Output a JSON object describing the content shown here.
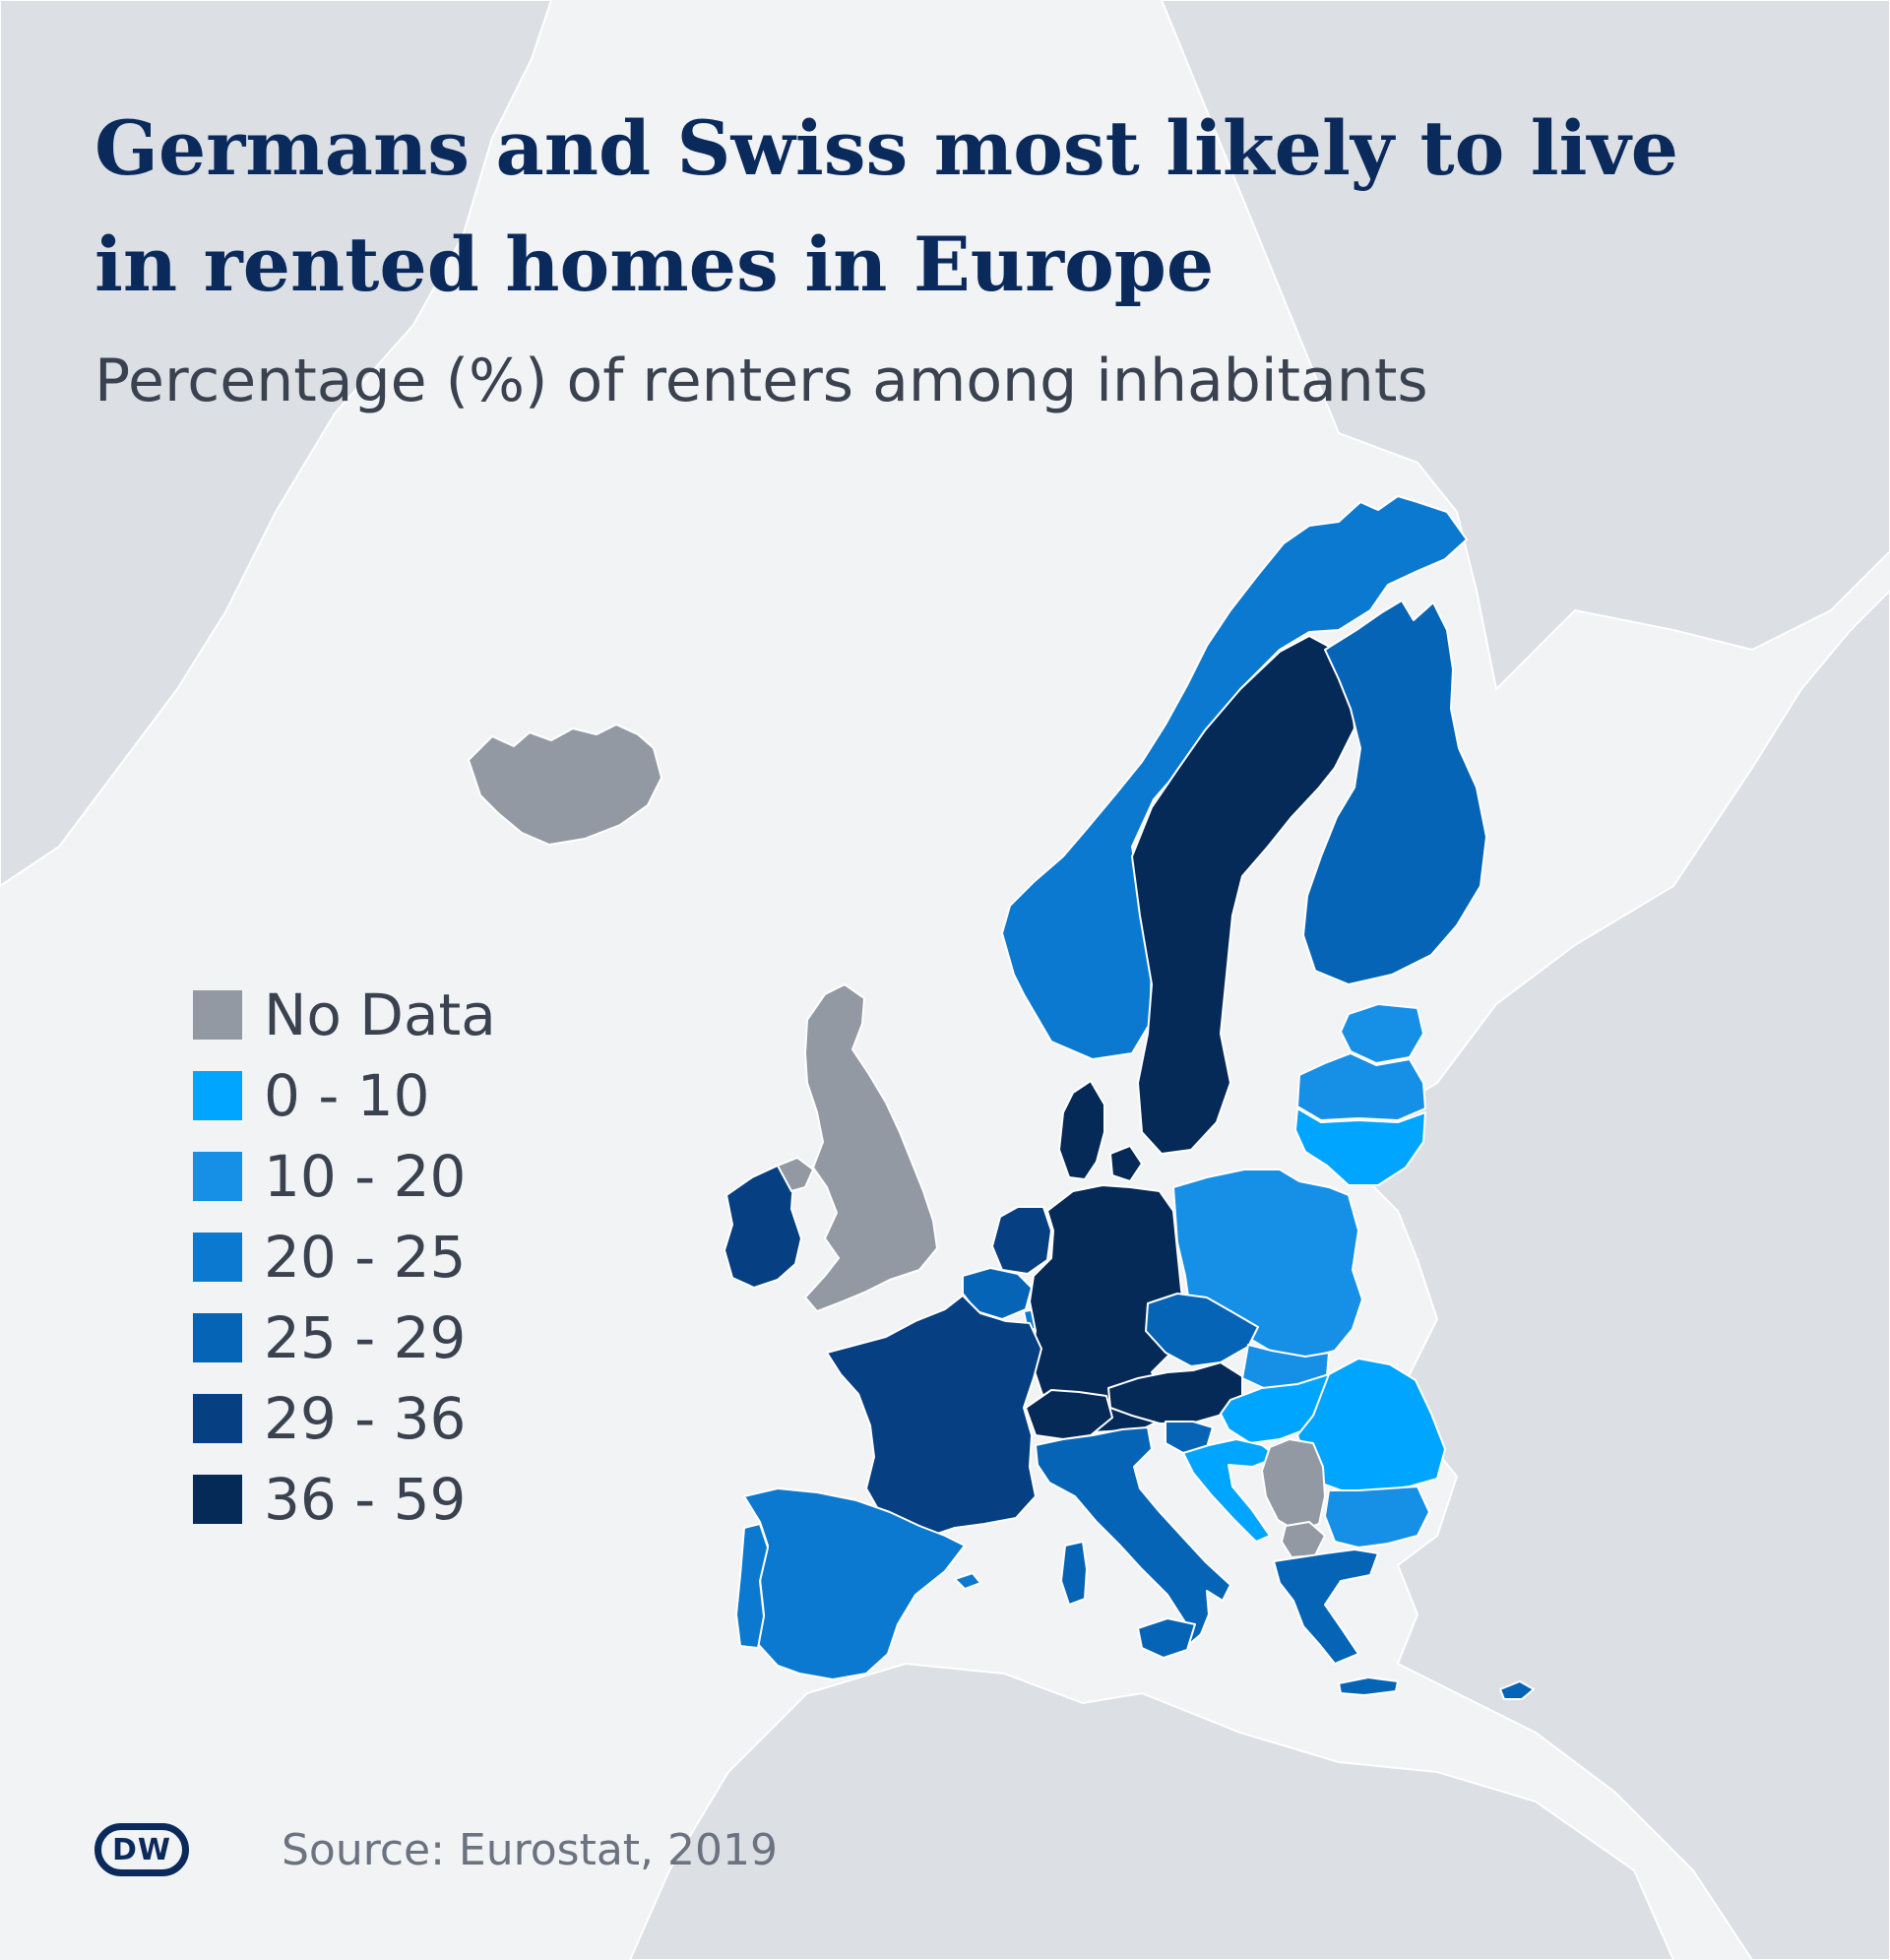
{
  "title": "Germans and Swiss most likely to live in rented homes in Europe",
  "subtitle": "Percentage (%) of renters among inhabitants",
  "legend": [
    {
      "label": "No Data",
      "color": "#9399a3"
    },
    {
      "label": "0 - 10",
      "color": "#00a5ff"
    },
    {
      "label": "10 - 20",
      "color": "#168fe6"
    },
    {
      "label": "20 - 25",
      "color": "#0b79d0"
    },
    {
      "label": "25 - 29",
      "color": "#0564b6"
    },
    {
      "label": "29 - 36",
      "color": "#063f82"
    },
    {
      "label": "36 - 59",
      "color": "#062a57"
    }
  ],
  "source": "Source: Eurostat, 2019",
  "logo": "DW",
  "map_colors": {
    "background": "#f2f3f5",
    "non_eu_land": "#dcdfe4",
    "borders": "#ffffff"
  },
  "countries": [
    {
      "name": "Germany",
      "class": "36 - 59"
    },
    {
      "name": "Switzerland",
      "class": "36 - 59"
    },
    {
      "name": "Sweden",
      "class": "36 - 59"
    },
    {
      "name": "Denmark",
      "class": "36 - 59"
    },
    {
      "name": "Austria",
      "class": "36 - 59"
    },
    {
      "name": "France",
      "class": "29 - 36"
    },
    {
      "name": "Netherlands",
      "class": "29 - 36"
    },
    {
      "name": "Ireland",
      "class": "29 - 36"
    },
    {
      "name": "Finland",
      "class": "25 - 29"
    },
    {
      "name": "Italy",
      "class": "25 - 29"
    },
    {
      "name": "Greece",
      "class": "25 - 29"
    },
    {
      "name": "Belgium",
      "class": "25 - 29"
    },
    {
      "name": "Czechia",
      "class": "25 - 29"
    },
    {
      "name": "Slovenia",
      "class": "25 - 29"
    },
    {
      "name": "Spain",
      "class": "20 - 25"
    },
    {
      "name": "Portugal",
      "class": "20 - 25"
    },
    {
      "name": "Norway",
      "class": "20 - 25"
    },
    {
      "name": "Luxembourg",
      "class": "20 - 25"
    },
    {
      "name": "Poland",
      "class": "10 - 20"
    },
    {
      "name": "Estonia",
      "class": "10 - 20"
    },
    {
      "name": "Latvia",
      "class": "10 - 20"
    },
    {
      "name": "Slovakia",
      "class": "10 - 20"
    },
    {
      "name": "Bulgaria",
      "class": "10 - 20"
    },
    {
      "name": "Hungary",
      "class": "0 - 10"
    },
    {
      "name": "Romania",
      "class": "0 - 10"
    },
    {
      "name": "Lithuania",
      "class": "0 - 10"
    },
    {
      "name": "Croatia",
      "class": "0 - 10"
    },
    {
      "name": "United Kingdom",
      "class": "No Data"
    },
    {
      "name": "Iceland",
      "class": "No Data"
    },
    {
      "name": "Serbia",
      "class": "No Data"
    },
    {
      "name": "North Macedonia",
      "class": "No Data"
    }
  ]
}
